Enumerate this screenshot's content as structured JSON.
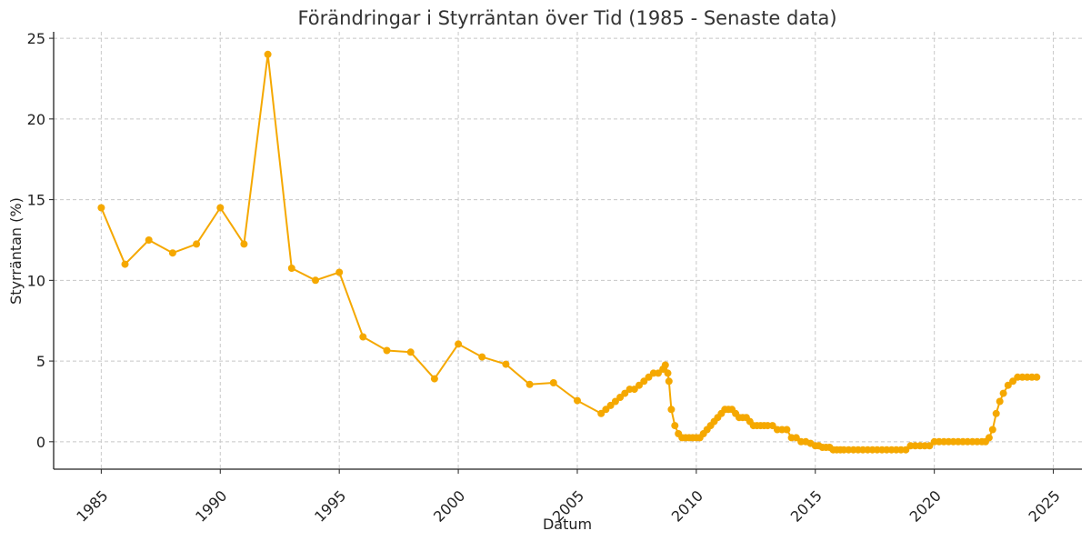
{
  "chart_data": {
    "type": "line",
    "title": "Förändringar i Styrräntan över Tid (1985 - Senaste data)",
    "xlabel": "Datum",
    "ylabel": "Styrräntan (%)",
    "xlim": [
      1983,
      2026.2
    ],
    "ylim": [
      -1.7,
      25.4
    ],
    "grid": true,
    "colors": {
      "series": "#f5a800",
      "grid": "#c8c8c8",
      "axis": "#222222",
      "text": "#333333"
    },
    "x_ticks": [
      1985,
      1990,
      1995,
      2000,
      2005,
      2010,
      2015,
      2020,
      2025
    ],
    "x_tick_labels": [
      "1985",
      "1990",
      "1995",
      "2000",
      "2005",
      "2010",
      "2015",
      "2020",
      "2025"
    ],
    "y_ticks": [
      0,
      5,
      10,
      15,
      20,
      25
    ],
    "y_tick_labels": [
      "0",
      "5",
      "10",
      "15",
      "20",
      "25"
    ],
    "series": [
      {
        "x": [
          1985,
          1986,
          1987,
          1988,
          1989,
          1990,
          1991,
          1992,
          1993,
          1994,
          1995,
          1996,
          1997,
          1998,
          1999,
          2000,
          2001,
          2002,
          2003,
          2004,
          2005,
          2006.0,
          2006.2,
          2006.4,
          2006.6,
          2006.8,
          2007.0,
          2007.2,
          2007.4,
          2007.6,
          2007.8,
          2008.0,
          2008.2,
          2008.4,
          2008.6,
          2008.7,
          2008.8,
          2008.85,
          2008.95,
          2009.1,
          2009.25,
          2009.4,
          2009.55,
          2009.7,
          2009.85,
          2010.0,
          2010.15,
          2010.3,
          2010.45,
          2010.6,
          2010.75,
          2010.9,
          2011.05,
          2011.2,
          2011.35,
          2011.5,
          2011.65,
          2011.8,
          2011.95,
          2012.1,
          2012.25,
          2012.4,
          2012.55,
          2012.7,
          2012.85,
          2013.0,
          2013.2,
          2013.4,
          2013.6,
          2013.8,
          2014.0,
          2014.2,
          2014.4,
          2014.6,
          2014.8,
          2015.0,
          2015.15,
          2015.3,
          2015.45,
          2015.6,
          2015.75,
          2015.9,
          2016.05,
          2016.2,
          2016.4,
          2016.6,
          2016.8,
          2017.0,
          2017.2,
          2017.4,
          2017.6,
          2017.8,
          2018.0,
          2018.2,
          2018.4,
          2018.6,
          2018.8,
          2019.0,
          2019.2,
          2019.4,
          2019.6,
          2019.8,
          2020.0,
          2020.2,
          2020.4,
          2020.6,
          2020.8,
          2021.0,
          2021.2,
          2021.4,
          2021.6,
          2021.8,
          2022.0,
          2022.15,
          2022.3,
          2022.45,
          2022.6,
          2022.75,
          2022.9,
          2023.1,
          2023.3,
          2023.5,
          2023.7,
          2023.9,
          2024.1,
          2024.3
        ],
        "y": [
          14.5,
          11.0,
          12.5,
          11.7,
          12.25,
          14.5,
          12.25,
          24.0,
          10.75,
          10.0,
          10.5,
          6.5,
          5.65,
          5.55,
          3.9,
          6.05,
          5.25,
          4.8,
          3.55,
          3.65,
          2.55,
          1.75,
          2.0,
          2.25,
          2.5,
          2.75,
          3.0,
          3.25,
          3.25,
          3.5,
          3.75,
          4.0,
          4.25,
          4.25,
          4.5,
          4.75,
          4.25,
          3.75,
          2.0,
          1.0,
          0.5,
          0.25,
          0.25,
          0.25,
          0.25,
          0.25,
          0.25,
          0.5,
          0.75,
          1.0,
          1.25,
          1.5,
          1.75,
          2.0,
          2.0,
          2.0,
          1.75,
          1.5,
          1.5,
          1.5,
          1.25,
          1.0,
          1.0,
          1.0,
          1.0,
          1.0,
          1.0,
          0.75,
          0.75,
          0.75,
          0.25,
          0.25,
          0.0,
          0.0,
          -0.1,
          -0.25,
          -0.25,
          -0.35,
          -0.35,
          -0.35,
          -0.5,
          -0.5,
          -0.5,
          -0.5,
          -0.5,
          -0.5,
          -0.5,
          -0.5,
          -0.5,
          -0.5,
          -0.5,
          -0.5,
          -0.5,
          -0.5,
          -0.5,
          -0.5,
          -0.5,
          -0.25,
          -0.25,
          -0.25,
          -0.25,
          -0.25,
          0.0,
          0.0,
          0.0,
          0.0,
          0.0,
          0.0,
          0.0,
          0.0,
          0.0,
          0.0,
          0.0,
          0.0,
          0.25,
          0.75,
          1.75,
          2.5,
          3.0,
          3.5,
          3.75,
          4.0,
          4.0,
          4.0,
          4.0,
          4.0
        ]
      }
    ]
  }
}
